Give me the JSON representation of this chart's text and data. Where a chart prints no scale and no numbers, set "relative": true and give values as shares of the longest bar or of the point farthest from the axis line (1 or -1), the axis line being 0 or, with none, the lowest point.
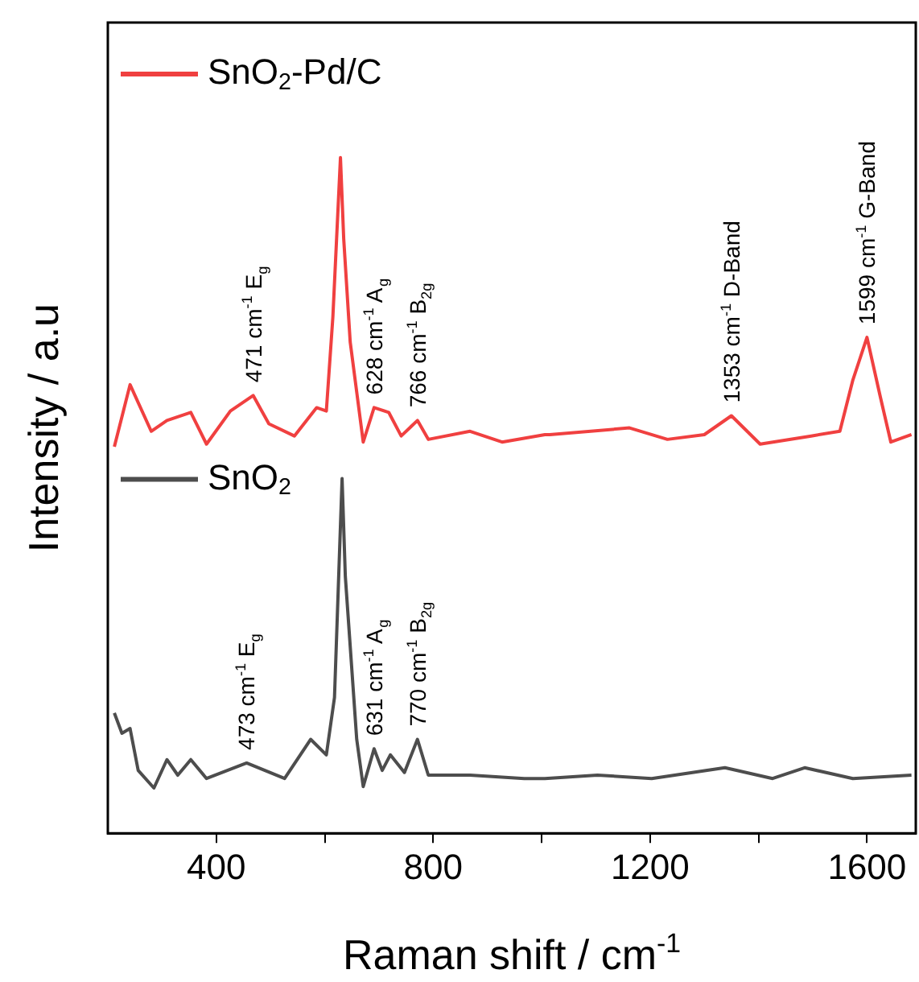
{
  "chart_data": {
    "type": "line",
    "relative": true,
    "xlabel": "Raman shift / cm$^{-1}$",
    "ylabel": "Intensity / a.u",
    "xlim": [
      200,
      1690
    ],
    "xticks": [
      400,
      {
        "value": 600,
        "label": null
      },
      800,
      {
        "value": 1000,
        "label": null
      },
      1200,
      {
        "value": 1400,
        "label": null
      },
      1600
    ],
    "legend": "top left",
    "series": [
      {
        "name": "SnO$_{2}$-Pd/C",
        "color": "#f04040",
        "x": [
          212,
          241,
          280,
          309,
          353,
          382,
          426,
          468,
          497,
          544,
          585,
          603,
          615,
          629,
          635,
          647,
          671,
          691,
          718,
          741,
          771,
          791,
          868,
          927,
          1006,
          1015,
          1162,
          1232,
          1300,
          1350,
          1403,
          1497,
          1550,
          1574,
          1600,
          1624,
          1644,
          1682
        ],
        "values": [
          0.572,
          0.664,
          0.595,
          0.611,
          0.623,
          0.576,
          0.625,
          0.648,
          0.606,
          0.588,
          0.63,
          0.625,
          0.764,
          1,
          0.88,
          0.727,
          0.579,
          0.63,
          0.623,
          0.588,
          0.611,
          0.583,
          0.595,
          0.579,
          0.59,
          0.59,
          0.6,
          0.583,
          0.59,
          0.618,
          0.576,
          0.588,
          0.595,
          0.671,
          0.734,
          0.648,
          0.579,
          0.59
        ]
      },
      {
        "name": "SnO$_{2}$",
        "color": "#4d4d4d",
        "x": [
          212,
          226,
          241,
          256,
          285,
          309,
          329,
          353,
          382,
          456,
          526,
          574,
          603,
          618,
          632,
          638,
          659,
          671,
          691,
          706,
          721,
          747,
          771,
          791,
          868,
          968,
          1006,
          1103,
          1203,
          1338,
          1426,
          1485,
          1574,
          1682
        ],
        "values": [
          0.178,
          0.148,
          0.155,
          0.093,
          0.067,
          0.109,
          0.086,
          0.109,
          0.081,
          0.104,
          0.081,
          0.139,
          0.116,
          0.201,
          0.525,
          0.38,
          0.139,
          0.069,
          0.125,
          0.093,
          0.116,
          0.09,
          0.139,
          0.086,
          0.086,
          0.081,
          0.081,
          0.086,
          0.081,
          0.097,
          0.081,
          0.097,
          0.081,
          0.086
        ]
      }
    ],
    "annotations": [
      {
        "text": "471 cm$^{-1}$ E$_{g}$",
        "x": 468,
        "y": 0.648
      },
      {
        "text": "628 cm$^{-1}$ A$_{g}$",
        "x": 691,
        "y": 0.63
      },
      {
        "text": "766 cm$^{-1}$ B$_{2g}$",
        "x": 771,
        "y": 0.611
      },
      {
        "text": "1353 cm$^{-1}$ D-Band",
        "x": 1350,
        "y": 0.618
      },
      {
        "text": "1599 cm$^{-1}$ G-Band",
        "x": 1600,
        "y": 0.734
      },
      {
        "text": "473 cm$^{-1}$ E$_{g}$",
        "x": 456,
        "y": 0.104
      },
      {
        "text": "631 cm$^{-1}$ A$_{g}$",
        "x": 691,
        "y": 0.125
      },
      {
        "text": "770 cm$^{-1}$ B$_{2g}$",
        "x": 771,
        "y": 0.139
      }
    ]
  }
}
